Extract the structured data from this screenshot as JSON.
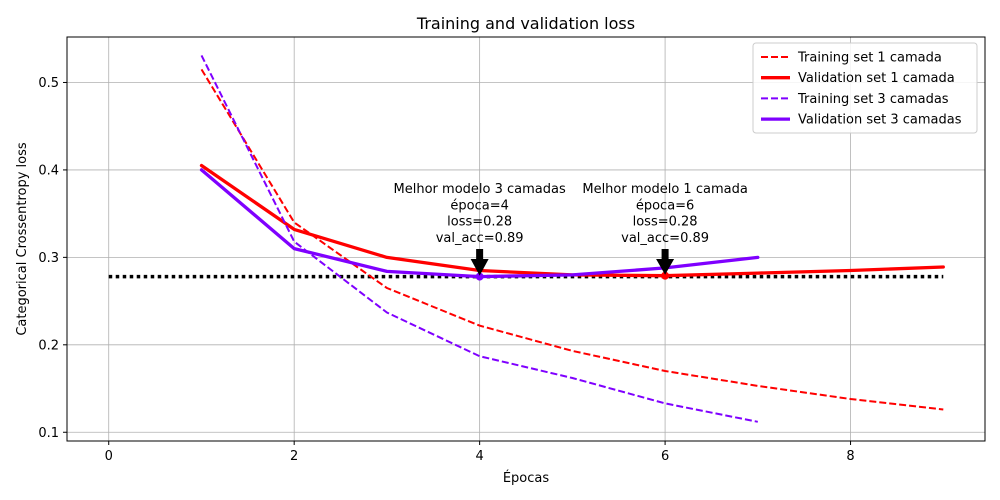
{
  "chart_data": {
    "type": "line",
    "title": "Training and validation loss",
    "xlabel": "Épocas",
    "ylabel": "Categorical Crossentropy loss",
    "xlim": [
      -0.45,
      9.45
    ],
    "ylim": [
      0.09,
      0.552
    ],
    "xticks": [
      0,
      2,
      4,
      6,
      8
    ],
    "yticks": [
      0.1,
      0.2,
      0.3,
      0.4,
      0.5
    ],
    "grid": true,
    "legend_position": "top-right",
    "series": [
      {
        "name": "Training set 1 camada",
        "style": "dashed",
        "color": "#ff0000",
        "x": [
          1,
          2,
          3,
          4,
          5,
          6,
          7,
          8,
          9
        ],
        "y": [
          0.515,
          0.34,
          0.265,
          0.222,
          0.193,
          0.17,
          0.153,
          0.138,
          0.126
        ]
      },
      {
        "name": "Validation set 1 camada",
        "style": "solid",
        "color": "#ff0000",
        "x": [
          1,
          2,
          3,
          4,
          5,
          6,
          7,
          8,
          9
        ],
        "y": [
          0.405,
          0.332,
          0.3,
          0.285,
          0.28,
          0.279,
          0.282,
          0.285,
          0.289
        ]
      },
      {
        "name": "Training set 3 camadas",
        "style": "dashed",
        "color": "#7f00ff",
        "x": [
          1,
          2,
          3,
          4,
          5,
          6,
          7
        ],
        "y": [
          0.531,
          0.318,
          0.237,
          0.187,
          0.162,
          0.133,
          0.112
        ]
      },
      {
        "name": "Validation set 3 camadas",
        "style": "solid",
        "color": "#7f00ff",
        "x": [
          1,
          2,
          3,
          4,
          5,
          6,
          7
        ],
        "y": [
          0.4,
          0.31,
          0.284,
          0.278,
          0.28,
          0.288,
          0.3
        ]
      }
    ],
    "reference_line": {
      "y": 0.278,
      "x_start": 0,
      "x_end": 9,
      "style": "dotted",
      "color": "#000000"
    },
    "annotations": [
      {
        "x": 4,
        "y": 0.278,
        "color": "#7f00ff",
        "lines": [
          "Melhor modelo 3 camadas",
          "época=4",
          "loss=0.28",
          "val_acc=0.89"
        ]
      },
      {
        "x": 6,
        "y": 0.279,
        "color": "#ff0000",
        "lines": [
          "Melhor modelo 1 camada",
          "época=6",
          "loss=0.28",
          "val_acc=0.89"
        ]
      }
    ]
  }
}
